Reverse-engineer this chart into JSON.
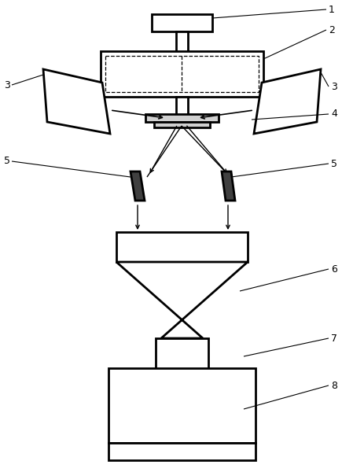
{
  "bg_color": "#ffffff",
  "line_color": "#000000",
  "lw_thick": 2.0,
  "lw_thin": 1.0,
  "lw_label": 0.8,
  "fs_label": 9
}
